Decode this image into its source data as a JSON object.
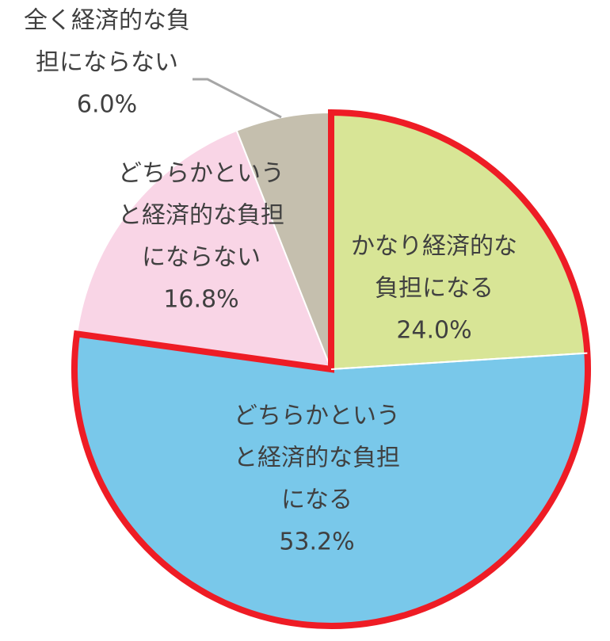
{
  "chart_data": {
    "type": "pie",
    "title": "",
    "start_angle_deg": 0,
    "direction": "clockwise",
    "slices": [
      {
        "label_lines": [
          "かなり経済的な",
          "負担になる"
        ],
        "value": 24.0,
        "value_label": "24.0%",
        "color": "#d8e596",
        "highlighted": true
      },
      {
        "label_lines": [
          "どちらかという",
          "と経済的な負担",
          "になる"
        ],
        "value": 53.2,
        "value_label": "53.2%",
        "color": "#79c8ea",
        "highlighted": true
      },
      {
        "label_lines": [
          "どちらかという",
          "と経済的な負担",
          "にならない"
        ],
        "value": 16.8,
        "value_label": "16.8%",
        "color": "#f9d5e6",
        "highlighted": false
      },
      {
        "label_lines": [
          "全く経済的な負",
          "担にならない"
        ],
        "value": 6.0,
        "value_label": "6.0%",
        "color": "#c5bfae",
        "highlighted": false
      }
    ],
    "highlight_color": "#ee1c25",
    "slice_border_color": "#ffffff",
    "leader_line_color": "#a6a6a6",
    "label_color": "#404040"
  }
}
